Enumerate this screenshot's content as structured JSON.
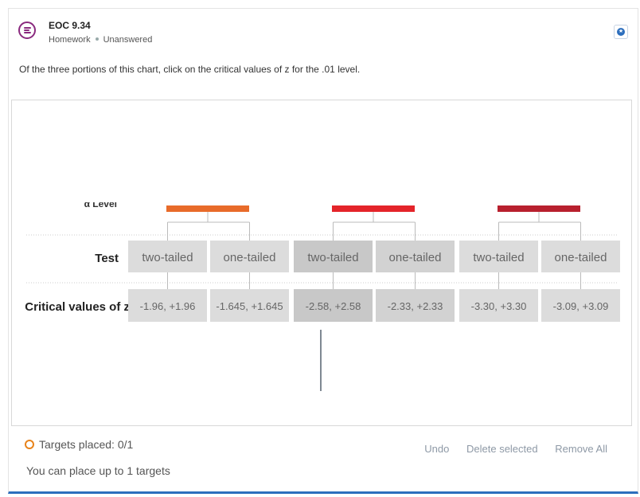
{
  "question": {
    "title": "EOC 9.34",
    "type": "Homework",
    "status": "Unanswered",
    "prompt": "Of the three portions of this chart, click on the critical values of z for the .01 level."
  },
  "chart": {
    "partial_header": "α Level",
    "row_test_label": "Test",
    "row_critical_label": "Critical values of z",
    "groups": [
      {
        "color": "#e86b2a",
        "tests": [
          "two-tailed",
          "one-tailed"
        ],
        "critical_values": [
          "-1.96, +1.96",
          "-1.645, +1.645"
        ]
      },
      {
        "color": "#e4242a",
        "tests": [
          "two-tailed",
          "one-tailed"
        ],
        "critical_values": [
          "-2.58, +2.58",
          "-2.33, +2.33"
        ]
      },
      {
        "color": "#b8202e",
        "tests": [
          "two-tailed",
          "one-tailed"
        ],
        "critical_values": [
          "-3.30, +3.30",
          "-3.09, +3.09"
        ]
      }
    ]
  },
  "footer": {
    "targets_placed": "Targets placed: 0/1",
    "targets_limit": "You can place up to 1 targets",
    "undo": "Undo",
    "delete_selected": "Delete selected",
    "remove_all": "Remove All"
  }
}
